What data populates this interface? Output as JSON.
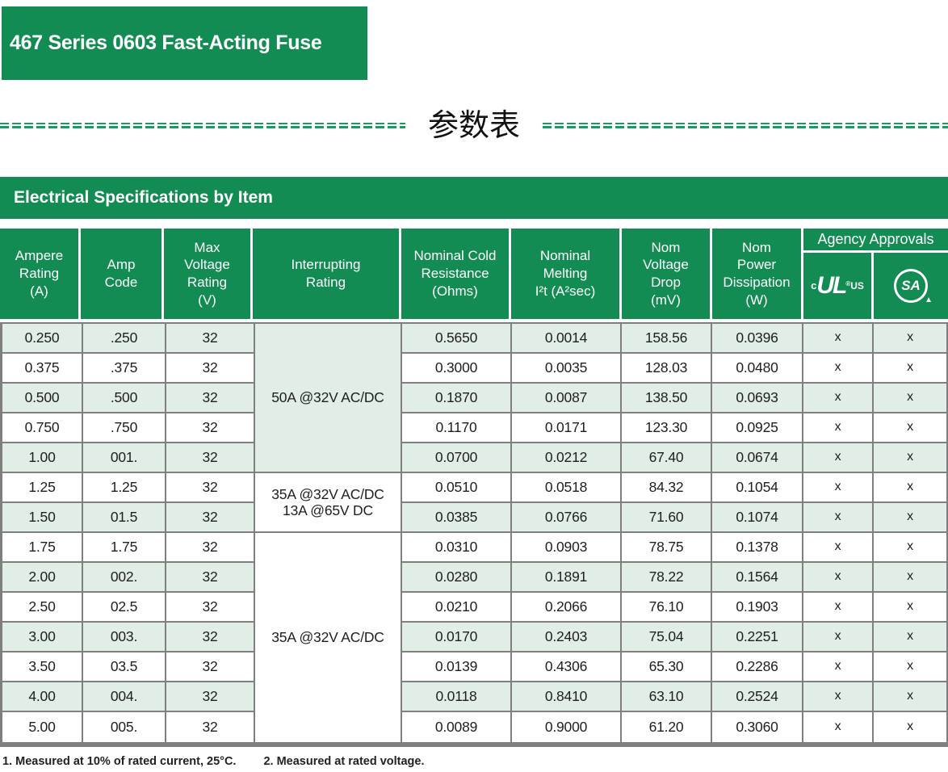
{
  "colors": {
    "brand_green": "#128C52",
    "row_tint": "#E1EEE6",
    "border_gray": "#7F7F7F"
  },
  "banner": {
    "title": "467 Series 0603 Fast-Acting Fuse"
  },
  "section_heading": {
    "title": "参数表"
  },
  "table": {
    "title": "Electrical Specifications by Item",
    "columns": [
      {
        "id": "ampere-rating",
        "label": "Ampere\nRating\n(A)"
      },
      {
        "id": "amp-code",
        "label": "Amp\nCode"
      },
      {
        "id": "max-voltage-rating",
        "label": "Max\nVoltage\nRating\n(V)"
      },
      {
        "id": "interrupting-rating",
        "label": "Interrupting\nRating"
      },
      {
        "id": "nominal-cold-resistance",
        "label": "Nominal Cold\nResistance\n(Ohms)"
      },
      {
        "id": "nominal-melting-i2t",
        "label": "Nominal\nMelting\nI²t (A²sec)"
      },
      {
        "id": "nom-voltage-drop",
        "label": "Nom\nVoltage\nDrop\n(mV)"
      },
      {
        "id": "nom-power-dissipation",
        "label": "Nom\nPower\nDissipation\n(W)"
      }
    ],
    "agency": {
      "header": "Agency Approvals",
      "ul": {
        "pre": "c",
        "letters": "UL",
        "reg": "®",
        "post": "US",
        "icon_name": "cULus-recognized-icon"
      },
      "csa": {
        "letters": "SA",
        "tri": "▲",
        "icon_name": "csa-certified-icon"
      }
    },
    "interrupting_groups": [
      {
        "label": "50A @32V AC/DC",
        "rows": 5,
        "tinted": true
      },
      {
        "label": "35A @32V AC/DC\n13A @65V DC",
        "rows": 2,
        "tinted": false
      },
      {
        "label": "35A @32V AC/DC",
        "rows": 7,
        "tinted": false
      }
    ],
    "rows": [
      [
        "0.250",
        ".250",
        "32",
        "0.5650",
        "0.0014",
        "158.56",
        "0.0396",
        "x",
        "x"
      ],
      [
        "0.375",
        ".375",
        "32",
        "0.3000",
        "0.0035",
        "128.03",
        "0.0480",
        "x",
        "x"
      ],
      [
        "0.500",
        ".500",
        "32",
        "0.1870",
        "0.0087",
        "138.50",
        "0.0693",
        "x",
        "x"
      ],
      [
        "0.750",
        ".750",
        "32",
        "0.1170",
        "0.0171",
        "123.30",
        "0.0925",
        "x",
        "x"
      ],
      [
        "1.00",
        "001.",
        "32",
        "0.0700",
        "0.0212",
        "67.40",
        "0.0674",
        "x",
        "x"
      ],
      [
        "1.25",
        "1.25",
        "32",
        "0.0510",
        "0.0518",
        "84.32",
        "0.1054",
        "x",
        "x"
      ],
      [
        "1.50",
        "01.5",
        "32",
        "0.0385",
        "0.0766",
        "71.60",
        "0.1074",
        "x",
        "x"
      ],
      [
        "1.75",
        "1.75",
        "32",
        "0.0310",
        "0.0903",
        "78.75",
        "0.1378",
        "x",
        "x"
      ],
      [
        "2.00",
        "002.",
        "32",
        "0.0280",
        "0.1891",
        "78.22",
        "0.1564",
        "x",
        "x"
      ],
      [
        "2.50",
        "02.5",
        "32",
        "0.0210",
        "0.2066",
        "76.10",
        "0.1903",
        "x",
        "x"
      ],
      [
        "3.00",
        "003.",
        "32",
        "0.0170",
        "0.2403",
        "75.04",
        "0.2251",
        "x",
        "x"
      ],
      [
        "3.50",
        "03.5",
        "32",
        "0.0139",
        "0.4306",
        "65.30",
        "0.2286",
        "x",
        "x"
      ],
      [
        "4.00",
        "004.",
        "32",
        "0.0118",
        "0.8410",
        "63.10",
        "0.2524",
        "x",
        "x"
      ],
      [
        "5.00",
        "005.",
        "32",
        "0.0089",
        "0.9000",
        "61.20",
        "0.3060",
        "x",
        "x"
      ]
    ],
    "footnotes": [
      "1.  Measured at 10% of rated current, 25°C.",
      "2. Measured at rated voltage."
    ]
  }
}
